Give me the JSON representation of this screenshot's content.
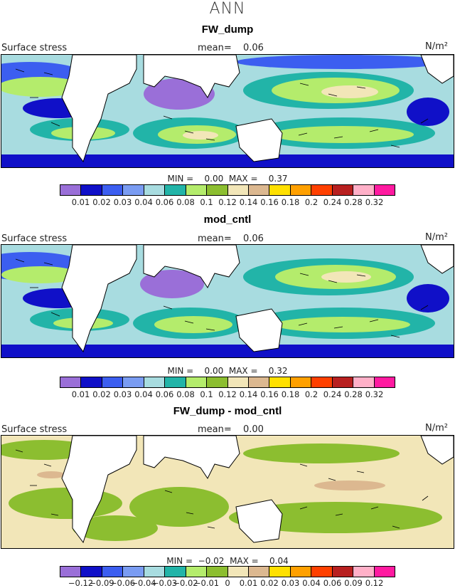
{
  "season": "ANN",
  "panels": [
    {
      "title": "FW_dump",
      "field_label": "Surface stress",
      "mean_label": "mean=",
      "mean_value": "0.06",
      "units": "N/m²",
      "min_label": "MIN =",
      "min_value": "0.00",
      "max_label": "MAX =",
      "max_value": "0.37",
      "colorbar_ticks": [
        "0.01",
        "0.02",
        "0.03",
        "0.04",
        "0.06",
        "0.08",
        "0.1",
        "0.12",
        "0.14",
        "0.16",
        "0.18",
        "0.2",
        "0.24",
        "0.28",
        "0.32"
      ]
    },
    {
      "title": "mod_cntl",
      "field_label": "Surface stress",
      "mean_label": "mean=",
      "mean_value": "0.06",
      "units": "N/m²",
      "min_label": "MIN =",
      "min_value": "0.00",
      "max_label": "MAX =",
      "max_value": "0.32",
      "colorbar_ticks": [
        "0.01",
        "0.02",
        "0.03",
        "0.04",
        "0.06",
        "0.08",
        "0.1",
        "0.12",
        "0.14",
        "0.16",
        "0.18",
        "0.2",
        "0.24",
        "0.28",
        "0.32"
      ]
    },
    {
      "title": "FW_dump - mod_cntl",
      "field_label": "Surface stress",
      "mean_label": "mean=",
      "mean_value": "0.00",
      "units": "N/m²",
      "min_label": "MIN =",
      "min_value": "−0.02",
      "max_label": "MAX =",
      "max_value": "0.04",
      "colorbar_ticks": [
        "−0.12",
        "−0.09",
        "−0.06",
        "−0.04",
        "−0.03",
        "−0.02",
        "−0.01",
        "0",
        "0.01",
        "0.02",
        "0.03",
        "0.04",
        "0.06",
        "0.09",
        "0.12"
      ]
    }
  ],
  "colorbar_colors": [
    "#9a6fd8",
    "#1010c8",
    "#3c5ef0",
    "#7a9cf2",
    "#a8dce0",
    "#22b4a8",
    "#b4ec6c",
    "#8cbe30",
    "#f2e6b8",
    "#dcb890",
    "#ffe000",
    "#ffa000",
    "#ff4000",
    "#b82020",
    "#ffb0c8",
    "#ff1aa0"
  ]
}
